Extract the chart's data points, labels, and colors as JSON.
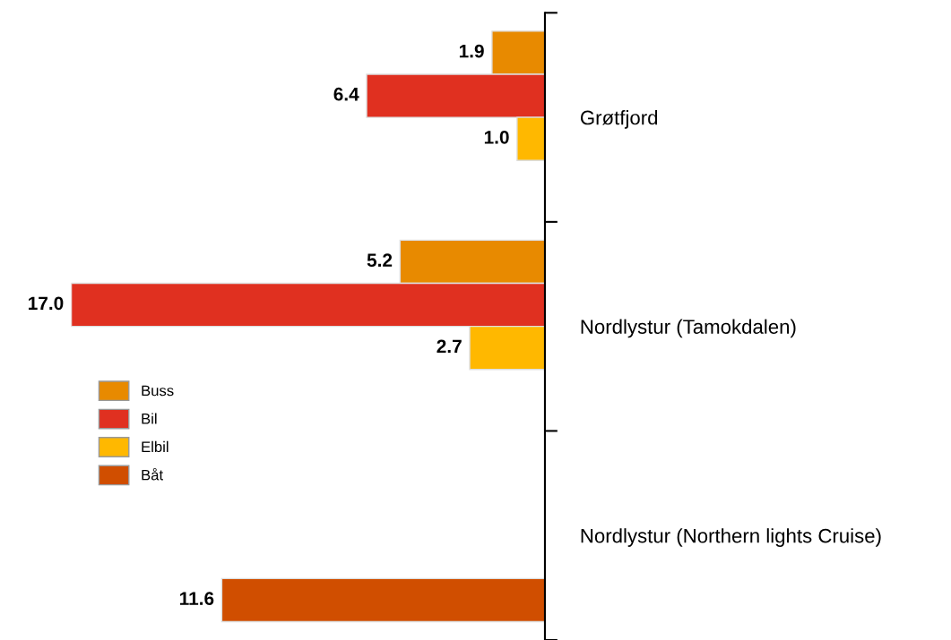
{
  "chart_data": {
    "type": "bar",
    "orientation": "horizontal",
    "categories": [
      "Grøtfjord",
      "Nordlystur (Tamokdalen)",
      "Nordlystur (Northern lights Cruise)"
    ],
    "series": [
      {
        "name": "Buss",
        "color": "#e88a00",
        "values": [
          1.9,
          5.2,
          null
        ],
        "value_labels": [
          "1.9",
          "5.2",
          null
        ]
      },
      {
        "name": "Bil",
        "color": "#e03020",
        "values": [
          6.4,
          17.0,
          null
        ],
        "value_labels": [
          "6.4",
          "17.0",
          null
        ]
      },
      {
        "name": "Elbil",
        "color": "#ffb800",
        "values": [
          1.0,
          2.7,
          null
        ],
        "value_labels": [
          "1.0",
          "2.7",
          null
        ]
      },
      {
        "name": "Båt",
        "color": "#d04e00",
        "values": [
          null,
          null,
          11.6
        ],
        "value_labels": [
          null,
          null,
          "11.6"
        ]
      }
    ],
    "xlim": [
      17.0,
      0
    ],
    "tick_labels": "y",
    "grid": false,
    "legend": "left"
  }
}
